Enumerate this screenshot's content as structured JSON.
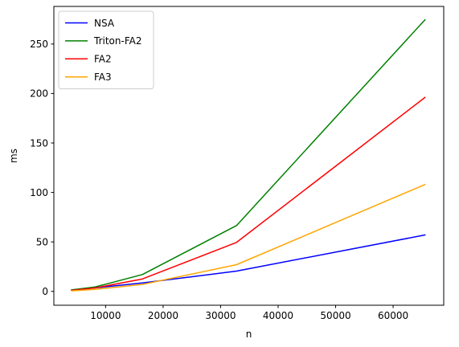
{
  "chart_data": {
    "type": "line",
    "title": "",
    "xlabel": "n",
    "ylabel": "ms",
    "xlim": [
      1000,
      68800
    ],
    "ylim": [
      -14,
      288
    ],
    "xticks": [
      10000,
      20000,
      30000,
      40000,
      50000,
      60000
    ],
    "xtick_labels": [
      "10000",
      "20000",
      "30000",
      "40000",
      "50000",
      "60000"
    ],
    "yticks": [
      0,
      50,
      100,
      150,
      200,
      250
    ],
    "ytick_labels": [
      "0",
      "50",
      "100",
      "150",
      "200",
      "250"
    ],
    "grid": false,
    "legend_position": "top-left",
    "x": [
      4096,
      8192,
      16384,
      32768,
      65536
    ],
    "series": [
      {
        "name": "NSA",
        "color": "#0000ff",
        "values": [
          1.5,
          3.5,
          8.5,
          20.5,
          57
        ]
      },
      {
        "name": "Triton-FA2",
        "color": "#008000",
        "values": [
          1.5,
          4.5,
          17,
          66.5,
          274.5
        ]
      },
      {
        "name": "FA2",
        "color": "#ff0000",
        "values": [
          1,
          3.5,
          12.5,
          49.5,
          196
        ]
      },
      {
        "name": "FA3",
        "color": "#ffa500",
        "values": [
          0.5,
          2,
          7,
          27,
          108
        ]
      }
    ]
  }
}
